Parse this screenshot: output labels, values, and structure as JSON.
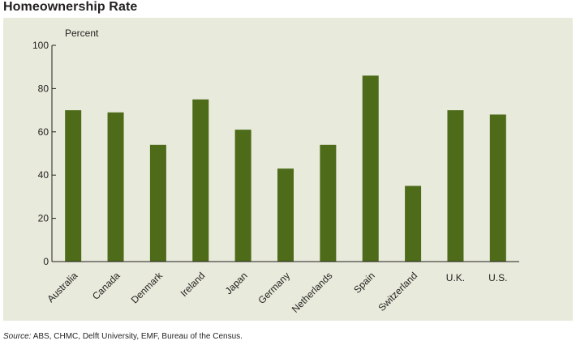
{
  "title": "Homeownership Rate",
  "source": {
    "label": "Source:",
    "text": "ABS, CHMC, Delft University, EMF, Bureau of the Census."
  },
  "colors": {
    "background": "#e8eadb",
    "bar": "#4e6b1a",
    "axis": "#231f20"
  },
  "chart_data": {
    "type": "bar",
    "title": "Homeownership Rate",
    "ylabel": "Percent",
    "xlabel": "",
    "ylim": [
      0,
      100
    ],
    "yticks": [
      0,
      20,
      40,
      60,
      80,
      100
    ],
    "grid": false,
    "categories": [
      "Australia",
      "Canada",
      "Denmark",
      "Ireland",
      "Japan",
      "Germany",
      "Netherlands",
      "Spain",
      "Switzerland",
      "U.K.",
      "U.S."
    ],
    "values": [
      70,
      69,
      54,
      75,
      61,
      43,
      54,
      86,
      35,
      70,
      68
    ]
  }
}
